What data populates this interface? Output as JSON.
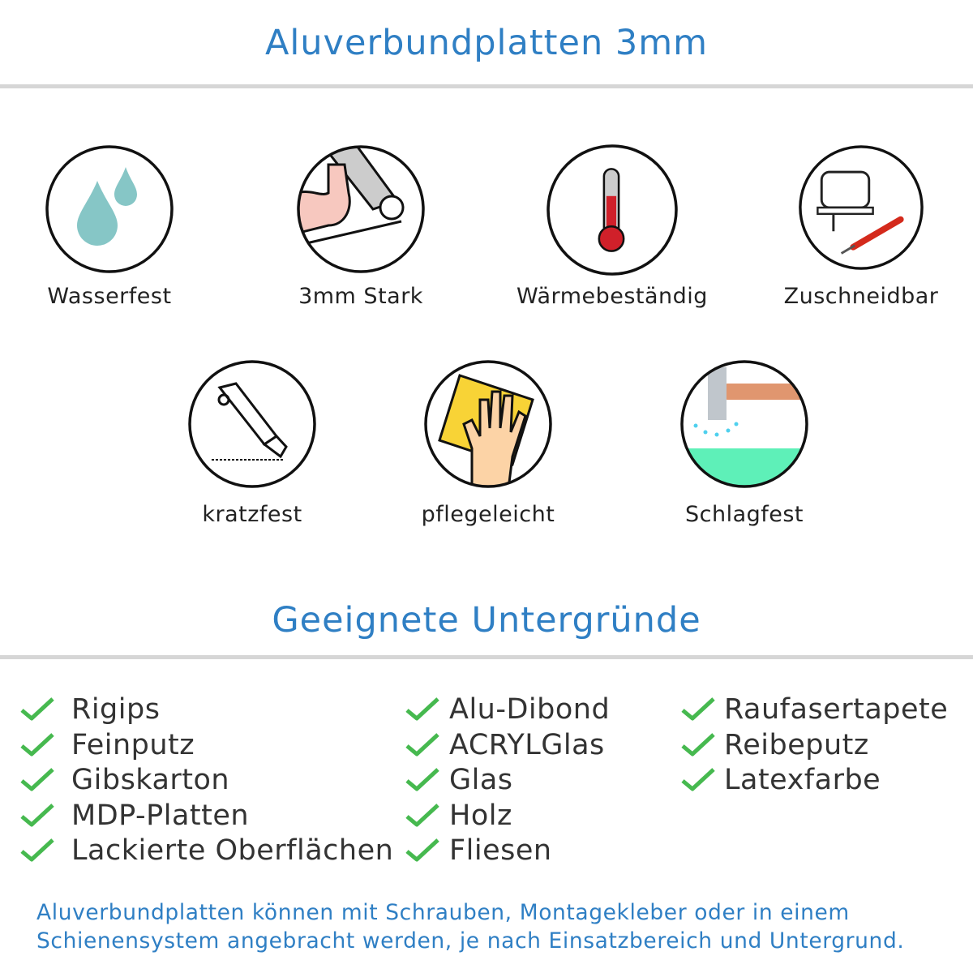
{
  "header": {
    "title": "Aluverbundplatten 3mm"
  },
  "features": [
    {
      "label": "Wasserfest",
      "icon": "water-drops-icon"
    },
    {
      "label": "3mm Stark",
      "icon": "flexed-arm-icon"
    },
    {
      "label": "Wärmebeständig",
      "icon": "thermometer-icon"
    },
    {
      "label": "Zuschneidbar",
      "icon": "jigsaw-icon"
    },
    {
      "label": "kratzfest",
      "icon": "box-cutter-icon"
    },
    {
      "label": "pflegeleicht",
      "icon": "hand-sponge-icon"
    },
    {
      "label": "Schlagfest",
      "icon": "hammer-icon"
    }
  ],
  "surfaces": {
    "title": "Geeignete Untergründe",
    "columns": [
      [
        "Rigips",
        "Feinputz",
        "Gibskarton",
        "MDP-Platten",
        "Lackierte Oberflächen"
      ],
      [
        "Alu-Dibond",
        "ACRYLGlas",
        "Glas",
        "Holz",
        "Fliesen"
      ],
      [
        "Raufasertapete",
        "Reibeputz",
        "Latexfarbe"
      ]
    ]
  },
  "footer": {
    "line1": "Aluverbundplatten können mit Schrauben, Montagekleber oder in einem",
    "line2": "Schienensystem angebracht werden, je nach Einsatzbereich und Untergrund."
  },
  "colors": {
    "accent": "#2f7fc4",
    "check": "#46b94f",
    "divider": "#d6d6d6"
  }
}
